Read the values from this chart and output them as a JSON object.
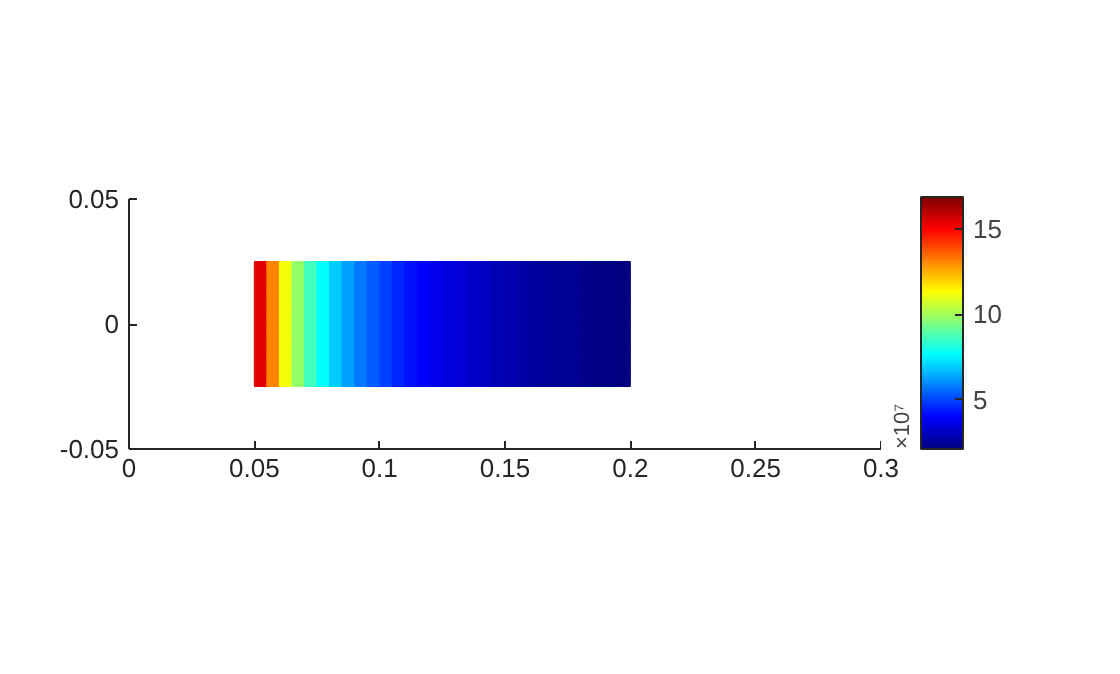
{
  "chart_data": {
    "type": "heatmap",
    "x": [
      0.0525,
      0.0575,
      0.0625,
      0.0675,
      0.0725,
      0.0775,
      0.0825,
      0.0875,
      0.0925,
      0.0975,
      0.1025,
      0.1075,
      0.1125,
      0.1175,
      0.1225,
      0.1275,
      0.1325,
      0.1375,
      0.1425,
      0.1475,
      0.1525,
      0.1575,
      0.1625,
      0.1675,
      0.1725,
      0.1775,
      0.1825,
      0.1875,
      0.1925,
      0.1975
    ],
    "y": [
      0.0225,
      0.0175,
      0.0125,
      0.0075,
      0.0025,
      -0.0025,
      -0.0075,
      -0.0125,
      -0.0175,
      -0.0225
    ],
    "cells": [
      [
        15.4,
        13.1,
        11.2,
        9.8,
        8.6,
        7.7,
        6.9,
        6.3,
        5.7,
        5.3,
        4.9,
        4.5,
        4.2,
        4.0,
        3.7,
        3.5,
        3.4,
        3.2,
        3.1,
        2.9,
        2.8,
        2.7,
        2.6,
        2.5,
        2.4,
        2.4,
        2.3,
        2.2,
        2.2,
        2.1
      ],
      [
        15.4,
        13.1,
        11.2,
        9.8,
        8.6,
        7.7,
        6.9,
        6.3,
        5.7,
        5.3,
        4.9,
        4.5,
        4.2,
        4.0,
        3.7,
        3.5,
        3.4,
        3.2,
        3.1,
        2.9,
        2.8,
        2.7,
        2.6,
        2.5,
        2.4,
        2.4,
        2.3,
        2.2,
        2.2,
        2.1
      ],
      [
        15.4,
        13.1,
        11.2,
        9.8,
        8.6,
        7.7,
        6.9,
        6.3,
        5.7,
        5.3,
        4.9,
        4.5,
        4.2,
        4.0,
        3.7,
        3.5,
        3.4,
        3.2,
        3.1,
        2.9,
        2.8,
        2.7,
        2.6,
        2.5,
        2.4,
        2.4,
        2.3,
        2.2,
        2.2,
        2.1
      ],
      [
        15.4,
        13.1,
        11.2,
        9.8,
        8.6,
        7.7,
        6.9,
        6.3,
        5.7,
        5.3,
        4.9,
        4.5,
        4.2,
        4.0,
        3.7,
        3.5,
        3.4,
        3.2,
        3.1,
        2.9,
        2.8,
        2.7,
        2.6,
        2.5,
        2.4,
        2.4,
        2.3,
        2.2,
        2.2,
        2.1
      ],
      [
        15.4,
        13.1,
        11.2,
        9.8,
        8.6,
        7.7,
        6.9,
        6.3,
        5.7,
        5.3,
        4.9,
        4.5,
        4.2,
        4.0,
        3.7,
        3.5,
        3.4,
        3.2,
        3.1,
        2.9,
        2.8,
        2.7,
        2.6,
        2.5,
        2.4,
        2.4,
        2.3,
        2.2,
        2.2,
        2.1
      ],
      [
        15.4,
        13.1,
        11.2,
        9.8,
        8.6,
        7.7,
        6.9,
        6.3,
        5.7,
        5.3,
        4.9,
        4.5,
        4.2,
        4.0,
        3.7,
        3.5,
        3.4,
        3.2,
        3.1,
        2.9,
        2.8,
        2.7,
        2.6,
        2.5,
        2.4,
        2.4,
        2.3,
        2.2,
        2.2,
        2.1
      ],
      [
        15.4,
        13.1,
        11.2,
        9.8,
        8.6,
        7.7,
        6.9,
        6.3,
        5.7,
        5.3,
        4.9,
        4.5,
        4.2,
        4.0,
        3.7,
        3.5,
        3.4,
        3.2,
        3.1,
        2.9,
        2.8,
        2.7,
        2.6,
        2.5,
        2.4,
        2.4,
        2.3,
        2.2,
        2.2,
        2.1
      ],
      [
        15.4,
        13.1,
        11.2,
        9.8,
        8.6,
        7.7,
        6.9,
        6.3,
        5.7,
        5.3,
        4.9,
        4.5,
        4.2,
        4.0,
        3.7,
        3.5,
        3.4,
        3.2,
        3.1,
        2.9,
        2.8,
        2.7,
        2.6,
        2.5,
        2.4,
        2.4,
        2.3,
        2.2,
        2.2,
        2.1
      ],
      [
        15.4,
        13.1,
        11.2,
        9.8,
        8.6,
        7.7,
        6.9,
        6.3,
        5.7,
        5.3,
        4.9,
        4.5,
        4.2,
        4.0,
        3.7,
        3.5,
        3.4,
        3.2,
        3.1,
        2.9,
        2.8,
        2.7,
        2.6,
        2.5,
        2.4,
        2.4,
        2.3,
        2.2,
        2.2,
        2.1
      ],
      [
        15.4,
        13.1,
        11.2,
        9.8,
        8.6,
        7.7,
        6.9,
        6.3,
        5.7,
        5.3,
        4.9,
        4.5,
        4.2,
        4.0,
        3.7,
        3.5,
        3.4,
        3.2,
        3.1,
        2.9,
        2.8,
        2.7,
        2.6,
        2.5,
        2.4,
        2.4,
        2.3,
        2.2,
        2.2,
        2.1
      ]
    ],
    "clim": [
      2.1,
      16.9
    ],
    "cticks": [
      5,
      10,
      15
    ],
    "clabel": "×10⁷",
    "xlim": [
      0,
      0.3
    ],
    "xticks": [
      0,
      0.05,
      0.1,
      0.15,
      0.2,
      0.25,
      0.3
    ],
    "ylim": [
      -0.05,
      0.05
    ],
    "yticks": [
      -0.05,
      0,
      0.05
    ],
    "grid": false
  }
}
